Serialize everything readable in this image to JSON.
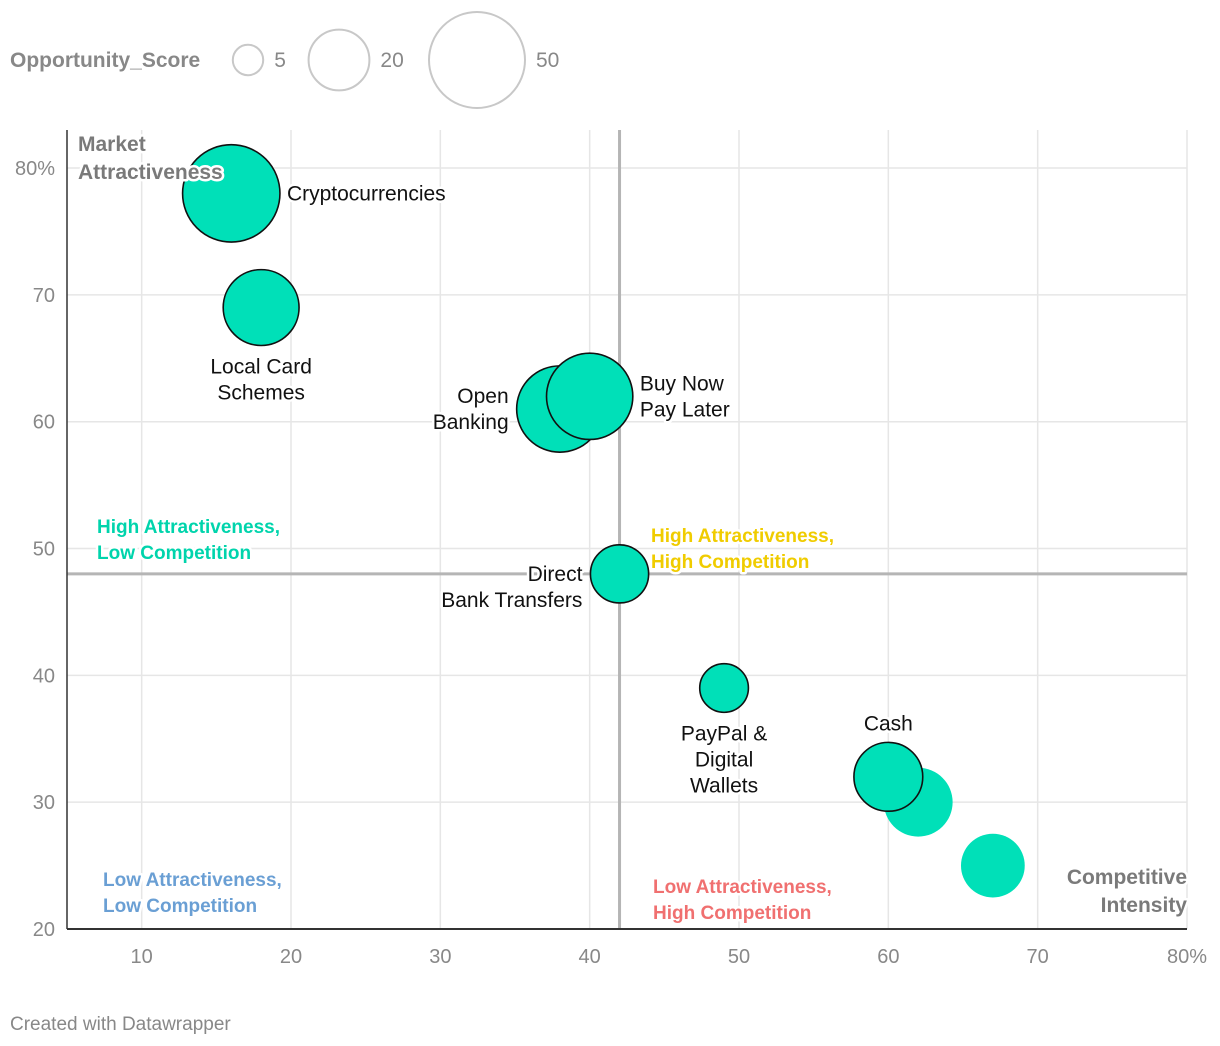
{
  "chart_data": {
    "type": "scatter",
    "title": "",
    "xlabel": "Competitive Intensity",
    "xlabel_lines": [
      "Competitive",
      "Intensity"
    ],
    "ylabel": "Market Attractiveness",
    "ylabel_lines": [
      "Market",
      "Attractiveness"
    ],
    "xlim": [
      5,
      80
    ],
    "ylim": [
      20,
      83
    ],
    "x_ticks": [
      {
        "value": 10,
        "label": "10"
      },
      {
        "value": 20,
        "label": "20"
      },
      {
        "value": 30,
        "label": "30"
      },
      {
        "value": 40,
        "label": "40"
      },
      {
        "value": 50,
        "label": "50"
      },
      {
        "value": 60,
        "label": "60"
      },
      {
        "value": 70,
        "label": "70"
      },
      {
        "value": 80,
        "label": "80%"
      }
    ],
    "y_ticks": [
      {
        "value": 20,
        "label": "20"
      },
      {
        "value": 30,
        "label": "30"
      },
      {
        "value": 40,
        "label": "40"
      },
      {
        "value": 50,
        "label": "50"
      },
      {
        "value": 60,
        "label": "60"
      },
      {
        "value": 70,
        "label": "70"
      },
      {
        "value": 80,
        "label": "80%"
      }
    ],
    "grid": true,
    "size_field": "Opportunity_Score",
    "reference_lines": {
      "x": 42,
      "y": 48
    },
    "bubble_color": "#00e0b8",
    "points": [
      {
        "name": "Cryptocurrencies",
        "label_lines": [
          "Cryptocurrencies"
        ],
        "x": 16,
        "y": 78,
        "size": 28,
        "outlined": true,
        "label_pos": "right"
      },
      {
        "name": "Local Card Schemes",
        "label_lines": [
          "Local Card",
          "Schemes"
        ],
        "x": 18,
        "y": 69,
        "size": 17,
        "outlined": true,
        "label_pos": "below"
      },
      {
        "name": "Open Banking",
        "label_lines": [
          "Open",
          "Banking"
        ],
        "x": 38,
        "y": 61,
        "size": 22,
        "outlined": true,
        "label_pos": "left"
      },
      {
        "name": "Buy Now Pay Later",
        "label_lines": [
          "Buy Now",
          "Pay Later"
        ],
        "x": 40,
        "y": 62,
        "size": 22,
        "outlined": true,
        "label_pos": "right"
      },
      {
        "name": "Direct Bank Transfers",
        "label_lines": [
          "Direct",
          "Bank Transfers"
        ],
        "x": 42,
        "y": 48,
        "size": 10,
        "outlined": true,
        "label_pos": "left"
      },
      {
        "name": "PayPal & Digital Wallets",
        "label_lines": [
          "PayPal &",
          "Digital",
          "Wallets"
        ],
        "x": 49,
        "y": 39,
        "size": 7,
        "outlined": true,
        "label_pos": "below"
      },
      {
        "name": "Unlabeled A",
        "label_lines": [],
        "x": 62,
        "y": 30,
        "size": 14,
        "outlined": false,
        "label_pos": "none"
      },
      {
        "name": "Cash",
        "label_lines": [
          "Cash"
        ],
        "x": 60,
        "y": 32,
        "size": 14,
        "outlined": true,
        "label_pos": "above"
      },
      {
        "name": "Unlabeled B",
        "label_lines": [],
        "x": 67,
        "y": 25,
        "size": 12,
        "outlined": false,
        "label_pos": "none"
      }
    ],
    "quadrants": [
      {
        "key": "top-left",
        "lines": [
          "High Attractiveness,",
          "Low Competition"
        ],
        "color": "#00d4ac"
      },
      {
        "key": "top-right",
        "lines": [
          "High Attractiveness,",
          "High Competition"
        ],
        "color": "#f0cc00"
      },
      {
        "key": "bottom-left",
        "lines": [
          "Low Attractiveness,",
          "Low Competition"
        ],
        "color": "#6a9fd4"
      },
      {
        "key": "bottom-right",
        "lines": [
          "Low Attractiveness,",
          "High Competition"
        ],
        "color": "#f07070"
      }
    ],
    "legend": {
      "title": "Opportunity_Score",
      "placement": "top-left",
      "entries": [
        {
          "value": 5,
          "label": "5"
        },
        {
          "value": 20,
          "label": "20"
        },
        {
          "value": 50,
          "label": "50"
        }
      ]
    }
  },
  "footer": {
    "credit": "Created with Datawrapper"
  }
}
